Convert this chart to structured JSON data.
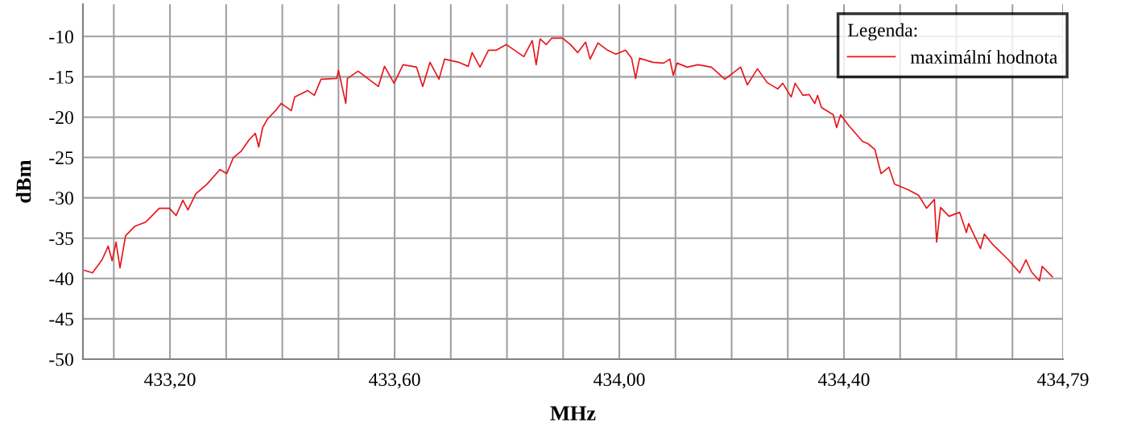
{
  "chart_data": {
    "type": "line",
    "xlabel": "MHz",
    "ylabel": "dBm",
    "legend_title": "Legenda:",
    "legend": "top right",
    "grid": true,
    "marker": "none",
    "line_style": "solid",
    "xlim": [
      433.045,
      434.79
    ],
    "ylim": [
      -50,
      -6
    ],
    "xticks": [
      {
        "value": 433.1,
        "label": null
      },
      {
        "value": 433.2,
        "label": "433,20"
      },
      {
        "value": 433.3,
        "label": null
      },
      {
        "value": 433.4,
        "label": null
      },
      {
        "value": 433.5,
        "label": null
      },
      {
        "value": 433.6,
        "label": "433,60"
      },
      {
        "value": 433.7,
        "label": null
      },
      {
        "value": 433.8,
        "label": null
      },
      {
        "value": 433.9,
        "label": null
      },
      {
        "value": 434.0,
        "label": "434,00"
      },
      {
        "value": 434.1,
        "label": null
      },
      {
        "value": 434.2,
        "label": null
      },
      {
        "value": 434.3,
        "label": null
      },
      {
        "value": 434.4,
        "label": "434,40"
      },
      {
        "value": 434.5,
        "label": null
      },
      {
        "value": 434.6,
        "label": null
      },
      {
        "value": 434.7,
        "label": null
      },
      {
        "value": 434.79,
        "label": "434,79"
      }
    ],
    "yticks": [
      -10,
      -15,
      -20,
      -25,
      -30,
      -35,
      -40,
      -45,
      -50
    ],
    "series": [
      {
        "name": "maximální hodnota",
        "color": "#e8151b",
        "x": [
          433.048,
          433.062,
          433.079,
          433.09,
          433.097,
          433.104,
          433.111,
          433.121,
          433.138,
          433.157,
          433.181,
          433.199,
          433.211,
          433.223,
          433.232,
          433.246,
          433.266,
          433.289,
          433.301,
          433.313,
          433.327,
          433.341,
          433.352,
          433.358,
          433.365,
          433.374,
          433.388,
          433.398,
          433.416,
          433.422,
          433.445,
          433.457,
          433.469,
          433.497,
          433.5,
          433.513,
          433.516,
          433.535,
          433.554,
          433.571,
          433.582,
          433.599,
          433.615,
          433.639,
          433.65,
          433.663,
          433.679,
          433.689,
          433.714,
          433.731,
          433.738,
          433.752,
          433.767,
          433.781,
          433.799,
          433.83,
          433.845,
          433.852,
          433.859,
          433.87,
          433.88,
          433.899,
          433.913,
          433.926,
          433.94,
          433.948,
          433.962,
          433.979,
          433.994,
          434.011,
          434.022,
          434.029,
          434.036,
          434.06,
          434.079,
          434.09,
          434.096,
          434.103,
          434.121,
          434.14,
          434.164,
          434.188,
          434.216,
          434.228,
          434.246,
          434.263,
          434.282,
          434.291,
          434.306,
          434.313,
          434.327,
          434.338,
          434.348,
          434.353,
          434.36,
          434.381,
          434.387,
          434.394,
          434.408,
          434.433,
          434.443,
          434.455,
          434.466,
          434.48,
          434.49,
          434.514,
          434.533,
          434.547,
          434.561,
          434.565,
          434.572,
          434.587,
          434.606,
          434.618,
          434.622,
          434.643,
          434.65,
          434.665,
          434.693,
          434.713,
          434.724,
          434.734,
          434.748,
          434.753,
          434.771
        ],
        "values": [
          -39.0,
          -39.3,
          -37.7,
          -36.0,
          -37.8,
          -35.5,
          -38.7,
          -34.7,
          -33.5,
          -33.0,
          -31.3,
          -31.3,
          -32.2,
          -30.3,
          -31.5,
          -29.5,
          -28.3,
          -26.5,
          -27.0,
          -25.0,
          -24.2,
          -22.8,
          -22.0,
          -23.7,
          -21.3,
          -20.2,
          -19.2,
          -18.3,
          -19.2,
          -17.5,
          -16.7,
          -17.3,
          -15.3,
          -15.2,
          -14.2,
          -18.3,
          -15.2,
          -14.3,
          -15.3,
          -16.2,
          -13.7,
          -15.8,
          -13.5,
          -13.8,
          -16.2,
          -13.2,
          -15.3,
          -12.8,
          -13.2,
          -13.7,
          -12.0,
          -13.8,
          -11.7,
          -11.7,
          -11.0,
          -12.5,
          -10.5,
          -13.5,
          -10.3,
          -11.0,
          -10.2,
          -10.2,
          -11.0,
          -12.0,
          -10.7,
          -12.8,
          -10.8,
          -11.7,
          -12.2,
          -11.7,
          -12.7,
          -15.2,
          -12.7,
          -13.2,
          -13.3,
          -12.8,
          -14.8,
          -13.3,
          -13.8,
          -13.5,
          -13.8,
          -15.3,
          -13.8,
          -16.0,
          -14.0,
          -15.7,
          -16.5,
          -15.8,
          -17.5,
          -15.8,
          -17.3,
          -17.2,
          -18.3,
          -17.3,
          -18.8,
          -19.7,
          -21.3,
          -19.7,
          -21.0,
          -23.0,
          -23.3,
          -24.0,
          -27.0,
          -26.2,
          -28.3,
          -29.0,
          -29.7,
          -31.3,
          -30.2,
          -35.5,
          -31.2,
          -32.3,
          -31.8,
          -34.3,
          -33.2,
          -36.3,
          -34.5,
          -35.8,
          -37.7,
          -39.3,
          -37.7,
          -39.2,
          -40.3,
          -38.5,
          -39.8
        ]
      }
    ]
  }
}
